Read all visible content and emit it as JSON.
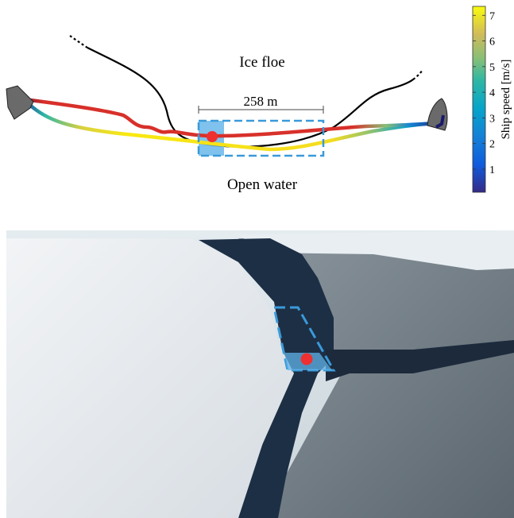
{
  "diagram": {
    "ice_label": "Ice floe",
    "distance_label": "258 m",
    "water_label": "Open water"
  },
  "colorbar": {
    "label": "Ship speed [m/s]",
    "lim": [
      0.1,
      7.35
    ],
    "ticks": [
      1,
      2,
      3,
      4,
      5,
      6,
      7
    ]
  }
}
